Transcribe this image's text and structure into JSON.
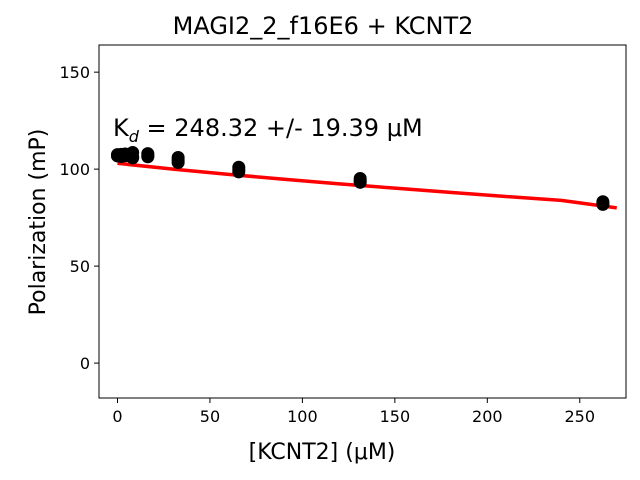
{
  "chart_data": {
    "type": "scatter",
    "title": "MAGI2_2_f16E6 + KCNT2",
    "xlabel": "[KCNT2] (μM)",
    "ylabel": "Polarization (mP)",
    "xlim": [
      -10,
      275
    ],
    "ylim": [
      -18,
      164
    ],
    "xticks": [
      0,
      50,
      100,
      150,
      200,
      250
    ],
    "yticks": [
      0,
      50,
      100,
      150
    ],
    "grid": false,
    "annotation": {
      "prefix": "K",
      "subscript": "d",
      "text": " = 248.32 +/- 19.39 μM"
    },
    "point_color": "#000000",
    "fit_color": "#ff0000",
    "points": [
      {
        "x": 0,
        "y": 107.5
      },
      {
        "x": 0,
        "y": 106.8
      },
      {
        "x": 0,
        "y": 107.2
      },
      {
        "x": 2.05,
        "y": 107.0
      },
      {
        "x": 2.05,
        "y": 106.5
      },
      {
        "x": 2.05,
        "y": 107.6
      },
      {
        "x": 4.1,
        "y": 107.8
      },
      {
        "x": 4.1,
        "y": 106.9
      },
      {
        "x": 4.1,
        "y": 107.3
      },
      {
        "x": 8.2,
        "y": 108.6
      },
      {
        "x": 8.2,
        "y": 106.2
      },
      {
        "x": 8.2,
        "y": 105.8
      },
      {
        "x": 16.4,
        "y": 108.0
      },
      {
        "x": 16.4,
        "y": 106.4
      },
      {
        "x": 16.4,
        "y": 107.0
      },
      {
        "x": 32.8,
        "y": 106.0
      },
      {
        "x": 32.8,
        "y": 103.4
      },
      {
        "x": 32.8,
        "y": 104.6
      },
      {
        "x": 65.6,
        "y": 101.0
      },
      {
        "x": 65.6,
        "y": 98.6
      },
      {
        "x": 65.6,
        "y": 99.8
      },
      {
        "x": 131.25,
        "y": 95.2
      },
      {
        "x": 131.25,
        "y": 93.2
      },
      {
        "x": 131.25,
        "y": 94.0
      },
      {
        "x": 262.5,
        "y": 83.2
      },
      {
        "x": 262.5,
        "y": 81.8
      },
      {
        "x": 262.5,
        "y": 82.4
      }
    ],
    "fit": {
      "x": [
        0,
        30,
        60,
        90,
        120,
        150,
        180,
        210,
        240,
        270
      ],
      "y": [
        103.0,
        100.0,
        97.3,
        94.8,
        92.4,
        90.2,
        88.0,
        85.9,
        83.9,
        80.0
      ]
    }
  }
}
